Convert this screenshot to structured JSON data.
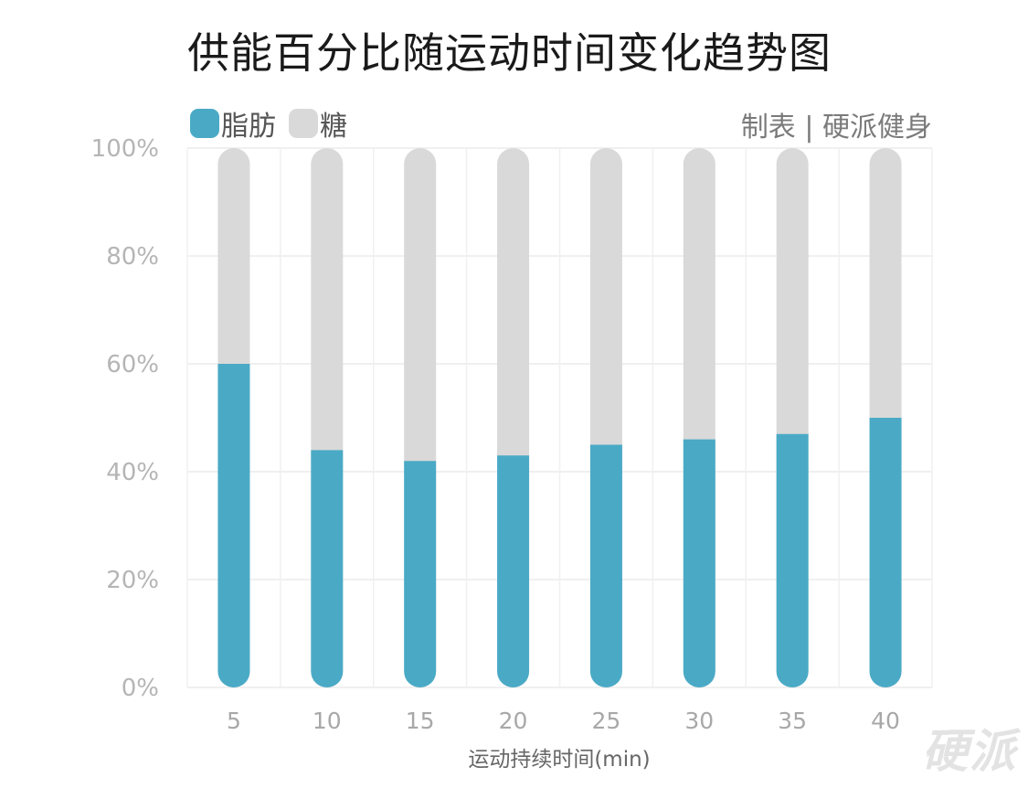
{
  "chart_data": {
    "type": "bar",
    "stacked": true,
    "title": "供能百分比随运动时间变化趋势图",
    "xlabel": "运动持续时间(min)",
    "ylabel": "",
    "categories": [
      "5",
      "10",
      "15",
      "20",
      "25",
      "30",
      "35",
      "40"
    ],
    "series": [
      {
        "name": "脂肪",
        "color": "#4aaac6",
        "values": [
          60,
          44,
          42,
          43,
          45,
          46,
          47,
          50
        ]
      },
      {
        "name": "糖",
        "color": "#d9d9d9",
        "values": [
          40,
          56,
          58,
          57,
          55,
          54,
          53,
          50
        ]
      }
    ],
    "ylim": [
      0,
      100
    ],
    "yticks": [
      "0%",
      "20%",
      "40%",
      "60%",
      "80%",
      "100%"
    ],
    "grid": true,
    "legend_position": "top-left"
  },
  "credit": "制表 | 硬派健身",
  "watermark": "硬派"
}
